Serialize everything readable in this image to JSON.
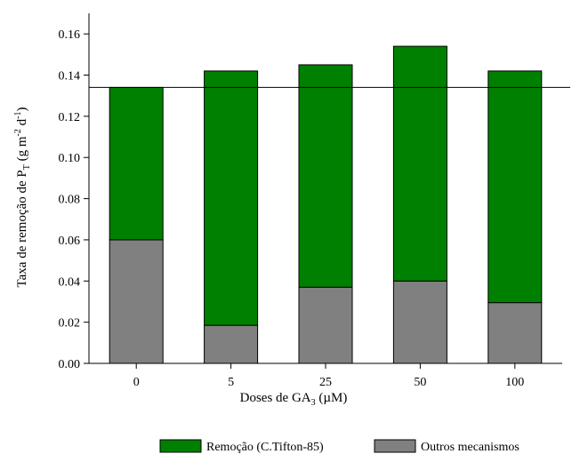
{
  "chart_data": {
    "type": "bar",
    "stacked": true,
    "title": "",
    "xlabel": "Doses de GA",
    "xlabel_sub": "3",
    "xlabel_unit": " (µM)",
    "ylabel_main": "Taxa de remoção de P",
    "ylabel_sub": "T",
    "ylabel_units": " (g m",
    "ylabel_exp1": "-2",
    "ylabel_d": " d",
    "ylabel_exp2": "-1",
    "ylabel_close": ")",
    "categories": [
      "0",
      "5",
      "25",
      "50",
      "100"
    ],
    "ylim": [
      0,
      0.17
    ],
    "yticks": [
      "0.00",
      "0.02",
      "0.04",
      "0.06",
      "0.08",
      "0.10",
      "0.12",
      "0.14",
      "0.16"
    ],
    "reference_line": 0.134,
    "series": [
      {
        "name": "Outros mecanismos",
        "values": [
          0.06,
          0.0185,
          0.037,
          0.04,
          0.0295
        ],
        "color": "#808080"
      },
      {
        "name": "Remoção (C.Tifton-85)",
        "values": [
          0.074,
          0.1235,
          0.108,
          0.114,
          0.1125
        ],
        "color": "#008000"
      }
    ],
    "legend": {
      "placement": "bottom",
      "entries": [
        {
          "name": "Remoção (C.Tifton-85)",
          "color": "#008000"
        },
        {
          "name": "Outros mecanismos",
          "color": "#808080"
        }
      ]
    },
    "grid": false
  }
}
